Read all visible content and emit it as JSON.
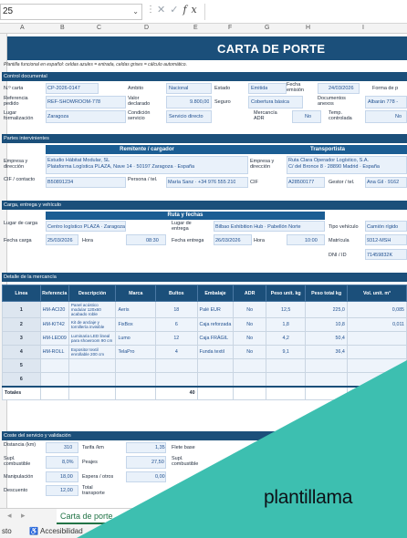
{
  "formula_bar": {
    "name_box": "25",
    "fx": "fx"
  },
  "columns": [
    "A",
    "B",
    "C",
    "D",
    "E",
    "F",
    "G",
    "H",
    "I"
  ],
  "title": "CARTA DE PORTE",
  "note": "Plantilla funcional en español: celdas azules = entrada, celdas grises = cálculo automático.",
  "sections": {
    "doc": "Control documental",
    "parties": "Partes intervinientes",
    "load": "Carga, entrega y vehículo",
    "goods": "Detalle de la mercancía",
    "cost": "Coste del servicio y validación"
  },
  "doc": {
    "n_carta_lbl": "N.º carta",
    "n_carta": "CP-2026-0147",
    "ambito_lbl": "Ámbito",
    "ambito": "Nacional",
    "estado_lbl": "Estado",
    "estado": "Emitida",
    "fecha_emision_lbl": "Fecha emisión",
    "fecha_emision": "24/03/2026",
    "forma_pago_lbl": "Forma de p",
    "ref_pedido_lbl": "Referencia pedido",
    "ref_pedido": "REF-SHOWROOM-778",
    "valor_decl_lbl": "Valor declarado",
    "valor_decl": "9.800,00",
    "seguro_lbl": "Seguro",
    "seguro": "Cobertura básica",
    "doc_anexos_lbl": "Documentos anexos",
    "doc_anexos": "Albarán 778 -",
    "lugar_form_lbl": "Lugar formalización",
    "lugar_form": "Zaragoza",
    "condicion_lbl": "Condición servicio",
    "condicion": "Servicio directo",
    "adr_lbl": "Mercancía ADR",
    "adr": "No",
    "temp_lbl": "Temp. controlada",
    "temp": "No"
  },
  "parties": {
    "remitente_head": "Remitente / cargador",
    "transportista_head": "Transportista",
    "empresa_lbl": "Empresa y dirección",
    "remitente_empresa": "Estudio Hábitat Modular, SL",
    "remitente_dir": "Plataforma Logística PLAZA, Nave 14 · 50197 Zaragoza · España",
    "transp_empresa_lbl": "Empresa y dirección",
    "transp_empresa": "Ruta Clara Operador Logístico, S.A.",
    "transp_dir": "C/ del Bronce 8 · 28890 Madrid · España",
    "cif_lbl": "CIF / contacto",
    "cif": "B50891234",
    "persona_lbl": "Persona / tel.",
    "persona": "María Sanz · +34 976 555 210",
    "cif2_lbl": "CIF",
    "cif2": "A28500177",
    "gestor_lbl": "Gestor / tel.",
    "gestor": "Ana Gil · 9162"
  },
  "load": {
    "ruta_head": "Ruta y fechas",
    "lugar_carga_lbl": "Lugar de carga",
    "lugar_carga": "Centro logístico PLAZA · Zaragoza",
    "lugar_entrega_lbl": "Lugar de entrega",
    "lugar_entrega": "Bilbao Exhibition Hub · Pabellón Norte",
    "fecha_carga_lbl": "Fecha carga",
    "fecha_carga": "25/03/2026",
    "hora_lbl": "Hora",
    "hora_carga": "08:30",
    "fecha_entrega_lbl": "Fecha entrega",
    "fecha_entrega": "26/03/2026",
    "hora2_lbl": "Hora",
    "hora_entrega": "10:00",
    "tipo_vehiculo_lbl": "Tipo vehículo",
    "tipo_vehiculo": "Camión rígido",
    "matricula_lbl": "Matrícula",
    "matricula": "9312-MSH",
    "dni_lbl": "DNI / ID",
    "dni": "71459832K"
  },
  "goods": {
    "headers": [
      "Línea",
      "Referencia",
      "Descripción",
      "Marca",
      "Bultos",
      "Embalaje",
      "ADR",
      "Peso unit. kg",
      "Peso total kg",
      "Vol. unit. m³"
    ],
    "rows": [
      {
        "n": "1",
        "ref": "HM-ACI20",
        "desc": "Panel acústico modular 120x60 acabado roble",
        "marca": "Aeris",
        "bultos": "18",
        "emb": "Palé EUR",
        "adr": "No",
        "pu": "12,5",
        "pt": "225,0",
        "vu": "0,085"
      },
      {
        "n": "2",
        "ref": "HM-KIT42",
        "desc": "Kit de anclaje y tornillería invisible",
        "marca": "FixBox",
        "bultos": "6",
        "emb": "Caja reforzada",
        "adr": "No",
        "pu": "1,8",
        "pt": "10,8",
        "vu": "0,011"
      },
      {
        "n": "3",
        "ref": "HM-LED09",
        "desc": "Luminaria LED lineal para showroom 90 cm",
        "marca": "Lumo",
        "bultos": "12",
        "emb": "Caja FRÁGIL",
        "adr": "No",
        "pu": "4,2",
        "pt": "50,4",
        "vu": ""
      },
      {
        "n": "4",
        "ref": "HM-ROLL",
        "desc": "Expositor textil enrollable 200 cm",
        "marca": "TelaPro",
        "bultos": "4",
        "emb": "Funda textil",
        "adr": "No",
        "pu": "9,1",
        "pt": "36,4",
        "vu": ""
      },
      {
        "n": "5",
        "ref": "",
        "desc": "",
        "marca": "",
        "bultos": "",
        "emb": "",
        "adr": "",
        "pu": "",
        "pt": "",
        "vu": ""
      },
      {
        "n": "6",
        "ref": "",
        "desc": "",
        "marca": "",
        "bultos": "",
        "emb": "",
        "adr": "",
        "pu": "",
        "pt": "",
        "vu": ""
      }
    ],
    "totals_lbl": "Totales",
    "totals_bultos": "40"
  },
  "cost": {
    "distancia_lbl": "Distancia (km)",
    "distancia": "310",
    "tarifa_lbl": "Tarifa /km",
    "tarifa": "1,35",
    "flete_lbl": "Flete base",
    "supl_comb_lbl": "Supl. combustible",
    "supl_comb": "8,0%",
    "peajes_lbl": "Peajes",
    "peajes": "27,50",
    "supl_comb2_lbl": "Supl. combustible",
    "manip_lbl": "Manipulación",
    "manip": "18,00",
    "espera_lbl": "Espera / otros",
    "espera": "0,00",
    "descuento_lbl": "Descuento",
    "descuento": "12,00",
    "total_lbl": "Total transporte"
  },
  "sheet_tab": "Carta de porte",
  "status": {
    "left": "sto",
    "accessibility": "Accesibilidad"
  },
  "brand": "plantillama",
  "colors": {
    "navy": "#1b4f7a",
    "teal": "#3dbfb0",
    "input_blue": "#e9f1fa"
  }
}
